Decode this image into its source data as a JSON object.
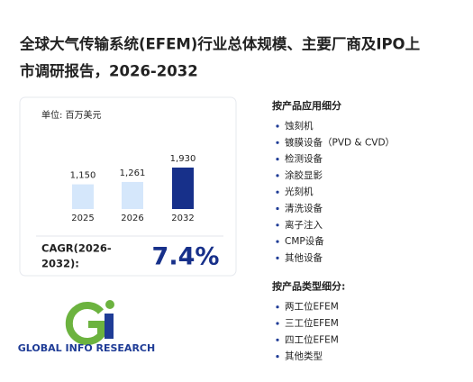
{
  "header": {
    "title_lines": [
      "全球大气传输系统(EFEM)行业总体规模、主要厂商及IPO上",
      "市调研报告，2026-2032"
    ]
  },
  "chart_data": {
    "type": "bar",
    "unit_label": "单位: 百万美元",
    "categories": [
      "2025",
      "2026",
      "2032"
    ],
    "values": [
      1150,
      1261,
      1930
    ],
    "value_labels": [
      "1,150",
      "1,261",
      "1,930"
    ],
    "colors": [
      "#d5e7fb",
      "#d5e7fb",
      "#17308a"
    ]
  },
  "cagr": {
    "label_lines": [
      "CAGR(2026-",
      "2032):"
    ],
    "value": "7.4%"
  },
  "segments": [
    {
      "heading": "按产品应用细分",
      "items": [
        "蚀刻机",
        "镀膜设备（PVD & CVD）",
        "检测设备",
        "涂胶显影",
        "光刻机",
        "清洗设备",
        "离子注入",
        "CMP设备",
        "其他设备"
      ]
    },
    {
      "heading": "按产品类型细分:",
      "items": [
        "两工位EFEM",
        "三工位EFEM",
        "四工位EFEM",
        "其他类型"
      ]
    }
  ],
  "logo": {
    "text": "GLOBAL INFO RESEARCH"
  }
}
